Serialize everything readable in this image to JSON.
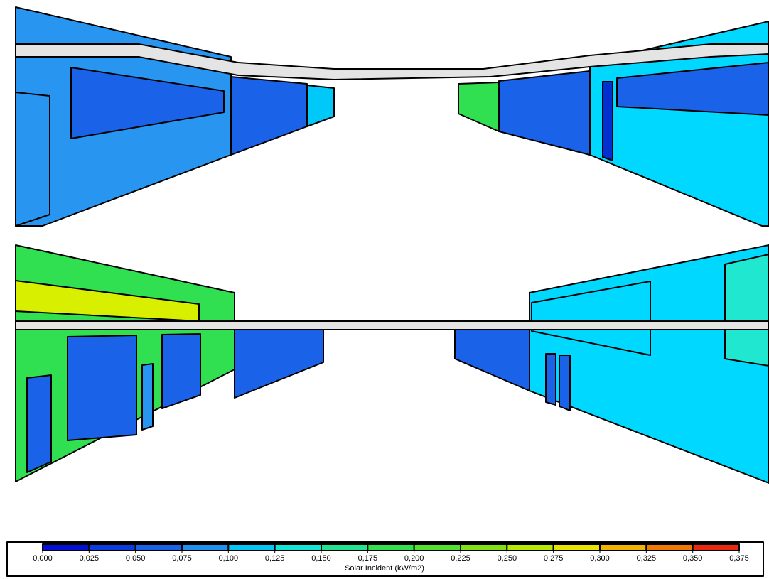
{
  "legend": {
    "title": "Solar Incident (kW/m2)",
    "ticks": [
      "0,000",
      "0,025",
      "0,050",
      "0,075",
      "0,100",
      "0,125",
      "0,150",
      "0,175",
      "0,200",
      "0,225",
      "0,250",
      "0,275",
      "0,300",
      "0,325",
      "0,350",
      "0,375"
    ],
    "colors": [
      "#0010d8",
      "#0a3ce0",
      "#1a62e8",
      "#1e90f0",
      "#00c8f8",
      "#10e6d8",
      "#20e490",
      "#30e050",
      "#50e030",
      "#80e010",
      "#b8e800",
      "#e6e400",
      "#f0b400",
      "#f07800",
      "#e82810"
    ]
  }
}
